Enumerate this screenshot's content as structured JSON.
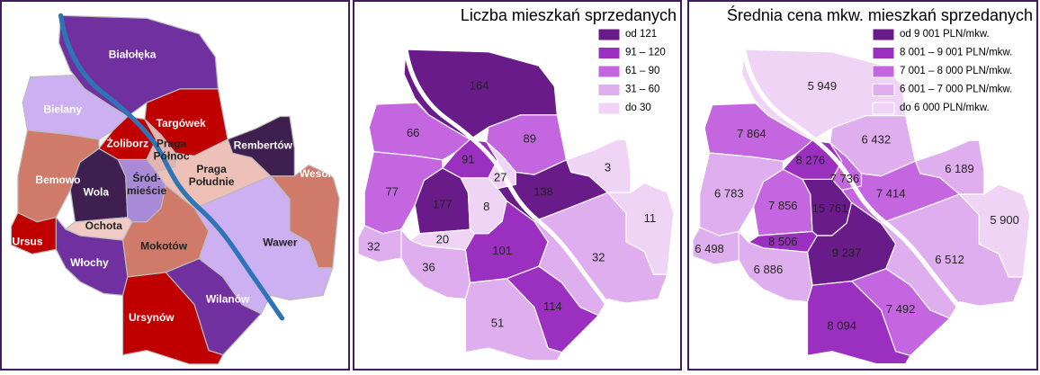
{
  "map1": {
    "districts": [
      {
        "name": [
          "Białołęka"
        ],
        "color": "#7030a0"
      },
      {
        "name": [
          "Bielany"
        ],
        "color": "#ccb0f2"
      },
      {
        "name": [
          "Targówek"
        ],
        "color": "#c00000"
      },
      {
        "name": [
          "Żoliborz"
        ],
        "color": "#c00000"
      },
      {
        "name": [
          "Praga",
          "Północ"
        ],
        "color": "#e6b4ae"
      },
      {
        "name": [
          "Rembertów"
        ],
        "color": "#3f1f4f"
      },
      {
        "name": [
          "Bemowo"
        ],
        "color": "#d07a6a"
      },
      {
        "name": [
          "Wesoła"
        ],
        "color": "#d07a6a"
      },
      {
        "name": [
          "Wola"
        ],
        "color": "#3f1f4f"
      },
      {
        "name": [
          "Śród-",
          "mieście"
        ],
        "color": "#a98ad8"
      },
      {
        "name": [
          "Praga",
          "Południe"
        ],
        "color": "#edc0b8"
      },
      {
        "name": [
          "Ochota"
        ],
        "color": "#f0cac4"
      },
      {
        "name": [
          "Ursus"
        ],
        "color": "#c00000"
      },
      {
        "name": [
          "Mokotów"
        ],
        "color": "#d07a6a"
      },
      {
        "name": [
          "Wawer"
        ],
        "color": "#ccb0f2"
      },
      {
        "name": [
          "Włochy"
        ],
        "color": "#7030a0"
      },
      {
        "name": [
          "Wilanów"
        ],
        "color": "#7030a0"
      },
      {
        "name": [
          "Ursynów"
        ],
        "color": "#c00000"
      }
    ]
  },
  "map2": {
    "title": "Liczba mieszkań sprzedanych",
    "legend": [
      {
        "label": "od 121",
        "color": "#6a1b8a"
      },
      {
        "label": "91 – 120",
        "color": "#9b30c0"
      },
      {
        "label": "61 – 90",
        "color": "#c466e0"
      },
      {
        "label": "31 – 60",
        "color": "#dfaeee"
      },
      {
        "label": "do 30",
        "color": "#f0d4f6"
      }
    ],
    "districts": [
      {
        "value": 164,
        "color": "#6a1b8a"
      },
      {
        "value": 66,
        "color": "#c466e0"
      },
      {
        "value": 89,
        "color": "#c466e0"
      },
      {
        "value": 91,
        "color": "#9b30c0"
      },
      {
        "value": 27,
        "color": "#f0d4f6"
      },
      {
        "value": 3,
        "color": "#f0d4f6"
      },
      {
        "value": 77,
        "color": "#c466e0"
      },
      {
        "value": 11,
        "color": "#f0d4f6"
      },
      {
        "value": 177,
        "color": "#6a1b8a"
      },
      {
        "value": 8,
        "color": "#f0d4f6"
      },
      {
        "value": 138,
        "color": "#6a1b8a"
      },
      {
        "value": 20,
        "color": "#f0d4f6"
      },
      {
        "value": 32,
        "color": "#dfaeee"
      },
      {
        "value": 101,
        "color": "#9b30c0"
      },
      {
        "value": 32,
        "color": "#dfaeee"
      },
      {
        "value": 36,
        "color": "#dfaeee"
      },
      {
        "value": 114,
        "color": "#9b30c0"
      },
      {
        "value": 51,
        "color": "#dfaeee"
      }
    ]
  },
  "map3": {
    "title": "Średnia cena mkw. mieszkań sprzedanych",
    "legend": [
      {
        "label": "od 9 001 PLN/mkw.",
        "color": "#6a1b8a"
      },
      {
        "label": "8 001 – 9 001 PLN/mkw.",
        "color": "#9b30c0"
      },
      {
        "label": "7 001 – 8 000 PLN/mkw.",
        "color": "#c466e0"
      },
      {
        "label": "6 001 – 7 000 PLN/mkw.",
        "color": "#dfaeee"
      },
      {
        "label": "do 6 000 PLN/mkw.",
        "color": "#f0d4f6"
      }
    ],
    "districts": [
      {
        "value": 5949,
        "value_label": "5 949",
        "color": "#f0d4f6"
      },
      {
        "value": 7864,
        "value_label": "7 864",
        "color": "#c466e0"
      },
      {
        "value": 6432,
        "value_label": "6 432",
        "color": "#dfaeee"
      },
      {
        "value": 8276,
        "value_label": "8 276",
        "color": "#9b30c0"
      },
      {
        "value": 7736,
        "value_label": "7 736",
        "color": "#c466e0"
      },
      {
        "value": 6189,
        "value_label": "6 189",
        "color": "#dfaeee"
      },
      {
        "value": 6783,
        "value_label": "6 783",
        "color": "#dfaeee"
      },
      {
        "value": 5900,
        "value_label": "5 900",
        "color": "#f0d4f6"
      },
      {
        "value": 7856,
        "value_label": "7 856",
        "color": "#c466e0"
      },
      {
        "value": 15761,
        "value_label": "15 761",
        "color": "#6a1b8a"
      },
      {
        "value": 7414,
        "value_label": "7 414",
        "color": "#c466e0"
      },
      {
        "value": 8506,
        "value_label": "8 506",
        "color": "#9b30c0"
      },
      {
        "value": 6498,
        "value_label": "6 498",
        "color": "#dfaeee"
      },
      {
        "value": 9237,
        "value_label": "9 237",
        "color": "#6a1b8a"
      },
      {
        "value": 6512,
        "value_label": "6 512",
        "color": "#dfaeee"
      },
      {
        "value": 6886,
        "value_label": "6 886",
        "color": "#dfaeee"
      },
      {
        "value": 7492,
        "value_label": "7 492",
        "color": "#c466e0"
      },
      {
        "value": 8094,
        "value_label": "8 094",
        "color": "#9b30c0"
      }
    ]
  }
}
